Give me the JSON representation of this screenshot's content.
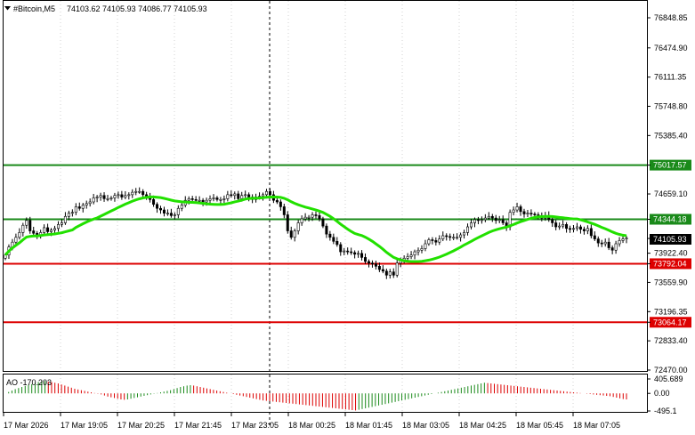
{
  "header": {
    "symbol": "#Bitcoin,M5",
    "ohlc": "74103.62 74105.93 74086.77 74105.93"
  },
  "colors": {
    "candle": "#000000",
    "ma": "#22e000",
    "green_level": "#1a8a1a",
    "red_level": "#dd0000",
    "current_box": "#000000",
    "ao_up": "#1a8a1a",
    "ao_down": "#dd0000",
    "grid": "#000000"
  },
  "chart_data": [
    {
      "type": "candlestick",
      "title": "#Bitcoin,M5",
      "yaxis_ticks": [
        "76848.85",
        "76474.90",
        "76111.35",
        "75748.80",
        "75385.40",
        "75017.57",
        "74659.10",
        "74344.18",
        "74105.93",
        "73922.40",
        "73792.04",
        "73559.90",
        "73196.35",
        "73064.17",
        "72833.40",
        "72470.00"
      ],
      "ylim": [
        72470.0,
        77030.0
      ],
      "xaxis_ticks": [
        "17 Mar 2026",
        "17 Mar 19:05",
        "17 Mar 20:25",
        "17 Mar 21:45",
        "17 Mar 23:05",
        "18 Mar 00:25",
        "18 Mar 01:45",
        "18 Mar 03:05",
        "18 Mar 04:25",
        "18 Mar 05:45",
        "18 Mar 07:05"
      ],
      "closes": [
        73900,
        74000,
        74060,
        74120,
        74180,
        74270,
        74330,
        74200,
        74170,
        74150,
        74180,
        74240,
        74190,
        74210,
        74230,
        74280,
        74300,
        74380,
        74420,
        74430,
        74500,
        74480,
        74520,
        74540,
        74560,
        74610,
        74620,
        74640,
        74600,
        74600,
        74610,
        74640,
        74650,
        74620,
        74640,
        74650,
        74680,
        74690,
        74690,
        74650,
        74630,
        74590,
        74530,
        74480,
        74460,
        74420,
        74420,
        74390,
        74400,
        74480,
        74520,
        74580,
        74600,
        74590,
        74580,
        74580,
        74560,
        74580,
        74600,
        74610,
        74590,
        74590,
        74600,
        74650,
        74640,
        74660,
        74600,
        74640,
        74650,
        74620,
        74590,
        74620,
        74630,
        74650,
        74690,
        74650,
        74580,
        74560,
        74500,
        74400,
        74200,
        74120,
        74200,
        74300,
        74350,
        74370,
        74370,
        74400,
        74390,
        74350,
        74260,
        74160,
        74120,
        74070,
        74030,
        73940,
        73950,
        73940,
        73930,
        73910,
        73920,
        73870,
        73820,
        73800,
        73790,
        73760,
        73720,
        73700,
        73650,
        73690,
        73650,
        73800,
        73840,
        73860,
        73880,
        73900,
        73940,
        73960,
        73980,
        74040,
        74090,
        74080,
        74060,
        74100,
        74140,
        74130,
        74120,
        74120,
        74120,
        74150,
        74180,
        74250,
        74300,
        74340,
        74330,
        74340,
        74360,
        74380,
        74360,
        74330,
        74340,
        74300,
        74250,
        74430,
        74460,
        74500,
        74440,
        74410,
        74420,
        74410,
        74400,
        74390,
        74360,
        74390,
        74340,
        74300,
        74250,
        74260,
        74280,
        74230,
        74220,
        74230,
        74250,
        74220,
        74200,
        74230,
        74140,
        74100,
        74050,
        74040,
        74060,
        73990,
        73960,
        74040,
        74080,
        74100,
        74110
      ],
      "series": [
        {
          "name": "MA",
          "kind": "line"
        }
      ],
      "levels": [
        {
          "label": "75017.57",
          "value": 75017.57,
          "color": "green"
        },
        {
          "label": "74344.18",
          "value": 74344.18,
          "color": "green"
        },
        {
          "label": "73792.04",
          "value": 73792.04,
          "color": "red"
        },
        {
          "label": "73064.17",
          "value": 73064.17,
          "color": "red"
        }
      ],
      "current_price": "74105.93",
      "grid": true
    },
    {
      "type": "bar",
      "title": "AO -170.203",
      "yaxis_ticks": [
        "405.689",
        "0.00",
        "-495.1"
      ],
      "ylim": [
        -495.1,
        405.689
      ],
      "values": [
        0,
        40,
        80,
        120,
        150,
        180,
        210,
        240,
        260,
        300,
        320,
        340,
        350,
        330,
        320,
        300,
        280,
        250,
        220,
        190,
        160,
        130,
        110,
        90,
        70,
        50,
        30,
        10,
        -10,
        -30,
        -60,
        -90,
        -110,
        -130,
        -150,
        -170,
        -180,
        -170,
        -150,
        -130,
        -110,
        -90,
        -70,
        -50,
        -30,
        -10,
        10,
        30,
        50,
        70,
        90,
        120,
        150,
        180,
        200,
        220,
        230,
        220,
        200,
        180,
        160,
        140,
        120,
        100,
        80,
        60,
        40,
        20,
        0,
        -20,
        -40,
        -60,
        -80,
        -100,
        -120,
        -140,
        -160,
        -180,
        -200,
        -210,
        -220,
        -230,
        -240,
        -250,
        -260,
        -270,
        -280,
        -290,
        -300,
        -310,
        -320,
        -330,
        -340,
        -350,
        -360,
        -370,
        -380,
        -390,
        -400,
        -410,
        -420,
        -430,
        -440,
        -450,
        -460,
        -470,
        -480,
        -460,
        -440,
        -420,
        -400,
        -380,
        -360,
        -340,
        -320,
        -300,
        -280,
        -260,
        -240,
        -220,
        -200,
        -180,
        -160,
        -140,
        -120,
        -100,
        -80,
        -60,
        -40,
        -20,
        0,
        20,
        40,
        60,
        80,
        100,
        120,
        140,
        160,
        180,
        200,
        220,
        240,
        260,
        280,
        300,
        290,
        280,
        270,
        260,
        250,
        240,
        230,
        220,
        210,
        200,
        190,
        180,
        170,
        160,
        150,
        140,
        130,
        120,
        110,
        100,
        90,
        80,
        70,
        60,
        50,
        40,
        30,
        20,
        10,
        0,
        -10,
        -20,
        -30,
        -40,
        -50,
        -60,
        -70,
        -80,
        -100,
        -120,
        -140,
        -160,
        -170
      ]
    }
  ]
}
